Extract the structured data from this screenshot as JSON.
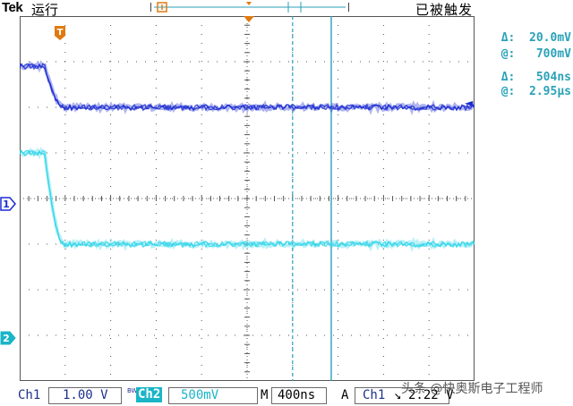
{
  "header": {
    "brand": "Tek",
    "run_state": "运行",
    "trigger_state": "已被触发"
  },
  "trigger_marker": {
    "label": "T"
  },
  "channels": {
    "ch1": {
      "marker": "1",
      "color": "#1a2bd1"
    },
    "ch2": {
      "marker": "2",
      "color": "#33d6ea"
    }
  },
  "ref_marker": "◄",
  "cursor_readouts": {
    "delta_v_symbol": "Δ:",
    "delta_v": "20.0mV",
    "at_v_symbol": "@:",
    "at_v": "700mV",
    "delta_t_symbol": "Δ:",
    "delta_t": "504ns",
    "at_t_symbol": "@:",
    "at_t": "2.95µs"
  },
  "bottom": {
    "ch1_label": "Ch1",
    "ch1_scale": "1.00 V",
    "bw_symbol": "BW",
    "ch2_label": "Ch2",
    "ch2_scale": "500mV",
    "timebase_label": "M",
    "timebase": "400ns",
    "trigger_mode": "A",
    "trigger_source": "Ch1",
    "trigger_slope": "↘",
    "trigger_level": "2.22 V"
  },
  "watermark": "头条 @快奥斯电子工程师",
  "colors": {
    "grid": "#555555",
    "accent": "#2aa1b8",
    "ch1": "#1a2bd1",
    "ch2": "#33d6ea",
    "cursor": "#2aa1b8"
  },
  "waveforms": {
    "ch1": {
      "high_level_div": 6.9,
      "low_level_div": 6.0,
      "edge_time_div": 0.55
    },
    "ch2": {
      "high_level_div": 5.0,
      "low_level_div": 3.0,
      "edge_time_div": 0.55
    }
  },
  "cursors": {
    "cursor1_div": 6.0,
    "cursor2_div": 6.85
  }
}
